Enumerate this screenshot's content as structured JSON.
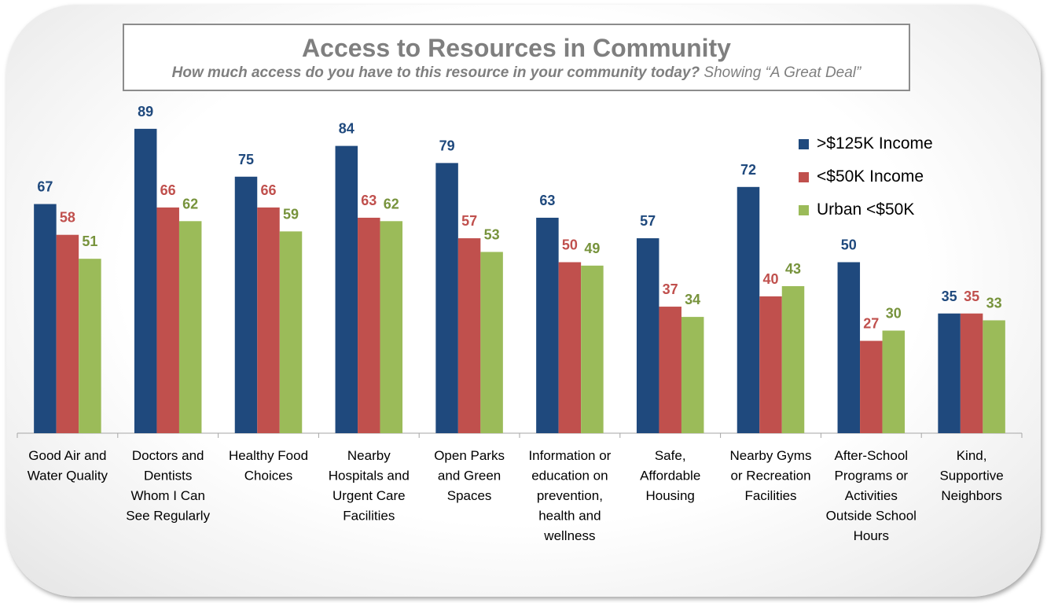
{
  "title": "Access to Resources in Community",
  "subtitle_question": "How much access do you have to this resource in your community today?",
  "subtitle_note": "Showing “A Great Deal”",
  "colors": {
    "high_income": "#1f497d",
    "low_income": "#c0504d",
    "urban_low": "#9bbb59",
    "axis": "#a6a6a6"
  },
  "chart_data": {
    "type": "bar",
    "ylim": [
      0,
      100
    ],
    "grid": false,
    "legend": "top-right",
    "categories": [
      [
        "Good Air and",
        "Water Quality"
      ],
      [
        "Doctors and",
        "Dentists",
        "Whom I Can",
        "See Regularly"
      ],
      [
        "Healthy Food",
        "Choices"
      ],
      [
        "Nearby",
        "Hospitals and",
        "Urgent Care",
        "Facilities"
      ],
      [
        "Open Parks",
        "and Green",
        "Spaces"
      ],
      [
        "Information or",
        "education on",
        "prevention,",
        "health and",
        "wellness"
      ],
      [
        "Safe,",
        "Affordable",
        "Housing"
      ],
      [
        "Nearby Gyms",
        "or Recreation",
        "Facilities"
      ],
      [
        "After-School",
        "Programs or",
        "Activities",
        "Outside School",
        "Hours"
      ],
      [
        "Kind,",
        "Supportive",
        "Neighbors"
      ]
    ],
    "series": [
      {
        "name": ">$125K Income",
        "color": "#1f497d",
        "label_color": "#1f497d",
        "values": [
          67,
          89,
          75,
          84,
          79,
          63,
          57,
          72,
          50,
          35
        ]
      },
      {
        "name": "<$50K Income",
        "color": "#c0504d",
        "label_color": "#c0504d",
        "values": [
          58,
          66,
          66,
          63,
          57,
          50,
          37,
          40,
          27,
          35
        ]
      },
      {
        "name": "Urban <$50K",
        "color": "#9bbb59",
        "label_color": "#77933c",
        "values": [
          51,
          62,
          59,
          62,
          53,
          49,
          34,
          43,
          30,
          33
        ]
      }
    ]
  }
}
